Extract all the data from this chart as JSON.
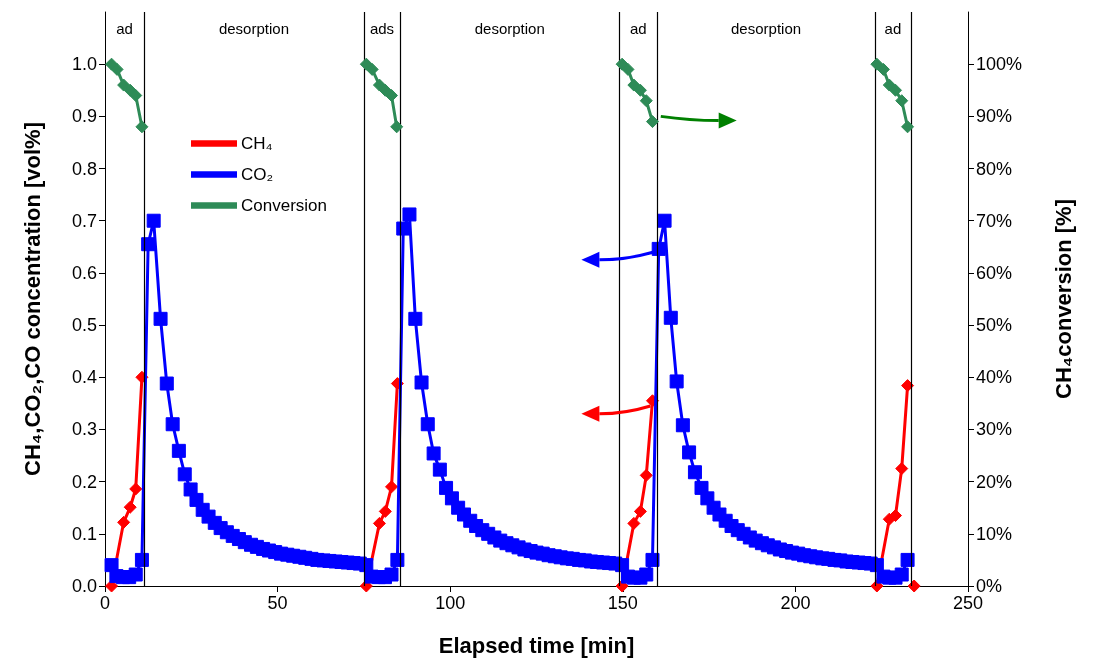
{
  "chart_data": {
    "type": "line",
    "xlabel": "Elapsed time [min]",
    "ylabel": "CH₄,CO₂,CO concentration [vol%]",
    "y2label": "CH₄conversion [%]",
    "xlim": [
      0,
      250
    ],
    "xticks": [
      0,
      50,
      100,
      150,
      200,
      250
    ],
    "ylim": [
      0,
      1.1
    ],
    "yticks": [
      {
        "value": 0,
        "label": "0.0"
      },
      0.1,
      0.2,
      0.3,
      0.4,
      0.5,
      0.6,
      0.7,
      0.8,
      0.9,
      {
        "value": 1,
        "label": "1.0"
      }
    ],
    "y2lim": [
      0,
      110
    ],
    "y2ticks": [
      {
        "value": 0,
        "label": "0%"
      },
      {
        "value": 10,
        "label": "10%"
      },
      {
        "value": 20,
        "label": "20%"
      },
      {
        "value": 30,
        "label": "30%"
      },
      {
        "value": 40,
        "label": "40%"
      },
      {
        "value": 50,
        "label": "50%"
      },
      {
        "value": 60,
        "label": "60%"
      },
      {
        "value": 70,
        "label": "70%"
      },
      {
        "value": 80,
        "label": "80%"
      },
      {
        "value": 90,
        "label": "90%"
      },
      {
        "value": 100,
        "label": "100%"
      }
    ],
    "grid": false,
    "legend": "top left",
    "line_style": "solid",
    "ref_lines": [
      {
        "axis": "x",
        "value": 11.3
      },
      {
        "axis": "x",
        "value": 75
      },
      {
        "axis": "x",
        "value": 85.5
      },
      {
        "axis": "x",
        "value": 149
      },
      {
        "axis": "x",
        "value": 160
      },
      {
        "axis": "x",
        "value": 223
      },
      {
        "axis": "x",
        "value": 233.5
      }
    ],
    "annotations": [
      "ad",
      "desorption",
      "ads",
      "desorption",
      "ad",
      "desorption",
      "ad"
    ],
    "series": [
      {
        "name": "CH₄",
        "color": "#ff0000",
        "marker": "diamond",
        "x": [
          1.9,
          5.4,
          7.3,
          8.9,
          10.7,
          40,
          75.7,
          79.5,
          81.2,
          83,
          84.7,
          120,
          149.8,
          153.2,
          155.1,
          156.8,
          158.6,
          190,
          223.6,
          227.2,
          229,
          230.8,
          232.5,
          233.5,
          234.4
        ],
        "values": [
          0,
          0.122,
          0.151,
          0.186,
          0.4,
          null,
          0,
          0.12,
          0.143,
          0.19,
          0.388,
          null,
          0,
          0.12,
          0.143,
          0.212,
          0.355,
          null,
          0,
          0.128,
          0.135,
          0.225,
          0.384,
          null,
          0
        ]
      },
      {
        "name": "CO₂",
        "color": "#0000ff",
        "marker": "square",
        "x": [
          1.9,
          3.3,
          5.2,
          7,
          8.9,
          10.7,
          12.5,
          14.1,
          16.1,
          17.9,
          19.6,
          21.4,
          23.1,
          24.8,
          26.5,
          28.3,
          30,
          31.8,
          33.5,
          35.3,
          37,
          38.8,
          40.5,
          42.3,
          44,
          45.8,
          47.5,
          49.3,
          51,
          52.8,
          54.5,
          56.3,
          58,
          59.8,
          61.5,
          63.3,
          65,
          66.8,
          68.5,
          70.3,
          72,
          73.8,
          75.7,
          77.2,
          79.3,
          81.1,
          83,
          84.7,
          86.4,
          88.2,
          89.9,
          91.7,
          93.5,
          95.2,
          97,
          98.8,
          100.5,
          102.3,
          104,
          105.8,
          107.5,
          109.3,
          111,
          112.8,
          114.5,
          116.3,
          118,
          119.8,
          121.5,
          123.3,
          125,
          126.8,
          128.5,
          130.3,
          132,
          133.8,
          135.5,
          137.3,
          139,
          140.8,
          142.5,
          144.3,
          146,
          147.8,
          149.8,
          151.5,
          153.2,
          155.1,
          156.8,
          158.6,
          160.4,
          162.1,
          163.9,
          165.6,
          167.4,
          169.2,
          170.9,
          172.8,
          174.5,
          176.3,
          178,
          179.8,
          181.5,
          183.3,
          185,
          186.8,
          188.5,
          190.3,
          192,
          193.8,
          195.5,
          197.3,
          199,
          200.8,
          202.5,
          204.3,
          206,
          207.8,
          209.5,
          211.3,
          213,
          214.8,
          216.5,
          218.3,
          220,
          221.8,
          223.6,
          225.5,
          227.2,
          229,
          230.8,
          232.5
        ],
        "values": [
          0.04,
          0.019,
          0.017,
          0.017,
          0.022,
          0.05,
          0.655,
          0.7,
          0.512,
          0.388,
          0.31,
          0.259,
          0.214,
          0.185,
          0.165,
          0.146,
          0.133,
          0.121,
          0.111,
          0.103,
          0.096,
          0.09,
          0.084,
          0.079,
          0.075,
          0.071,
          0.068,
          0.065,
          0.062,
          0.06,
          0.058,
          0.056,
          0.054,
          0.052,
          0.05,
          0.049,
          0.048,
          0.047,
          0.046,
          0.045,
          0.044,
          0.043,
          0.04,
          0.018,
          0.017,
          0.017,
          0.022,
          0.05,
          0.685,
          0.712,
          0.512,
          0.39,
          0.31,
          0.254,
          0.223,
          0.188,
          0.168,
          0.15,
          0.137,
          0.125,
          0.115,
          0.107,
          0.1,
          0.093,
          0.087,
          0.082,
          0.078,
          0.074,
          0.07,
          0.067,
          0.064,
          0.062,
          0.059,
          0.057,
          0.055,
          0.053,
          0.052,
          0.05,
          0.049,
          0.047,
          0.046,
          0.045,
          0.044,
          0.043,
          0.04,
          0.018,
          0.016,
          0.016,
          0.022,
          0.05,
          0.646,
          0.7,
          0.514,
          0.392,
          0.308,
          0.256,
          0.218,
          0.188,
          0.168,
          0.15,
          0.137,
          0.125,
          0.115,
          0.107,
          0.1,
          0.093,
          0.087,
          0.082,
          0.078,
          0.074,
          0.07,
          0.067,
          0.064,
          0.062,
          0.059,
          0.057,
          0.055,
          0.053,
          0.052,
          0.05,
          0.049,
          0.047,
          0.046,
          0.045,
          0.044,
          0.043,
          0.04,
          0.018,
          0.016,
          0.016,
          0.022,
          0.05
        ]
      },
      {
        "name": "Conversion",
        "color": "#2e8b57",
        "marker": "diamond",
        "axis": "y2",
        "x": [
          1.9,
          3.5,
          5.4,
          7.3,
          8.9,
          10.7,
          40,
          75.7,
          77.4,
          79.5,
          81.2,
          83,
          84.5,
          120,
          149.8,
          151.5,
          153.2,
          155.1,
          156.8,
          158.6,
          190,
          223.6,
          225.5,
          227.2,
          229,
          230.8,
          232.5
        ],
        "values": [
          100,
          99,
          96,
          95,
          94,
          88,
          null,
          100,
          99,
          96,
          95,
          94,
          88,
          null,
          100,
          99,
          96,
          95,
          93,
          89,
          null,
          100,
          99,
          96,
          95,
          93,
          88
        ]
      }
    ]
  }
}
